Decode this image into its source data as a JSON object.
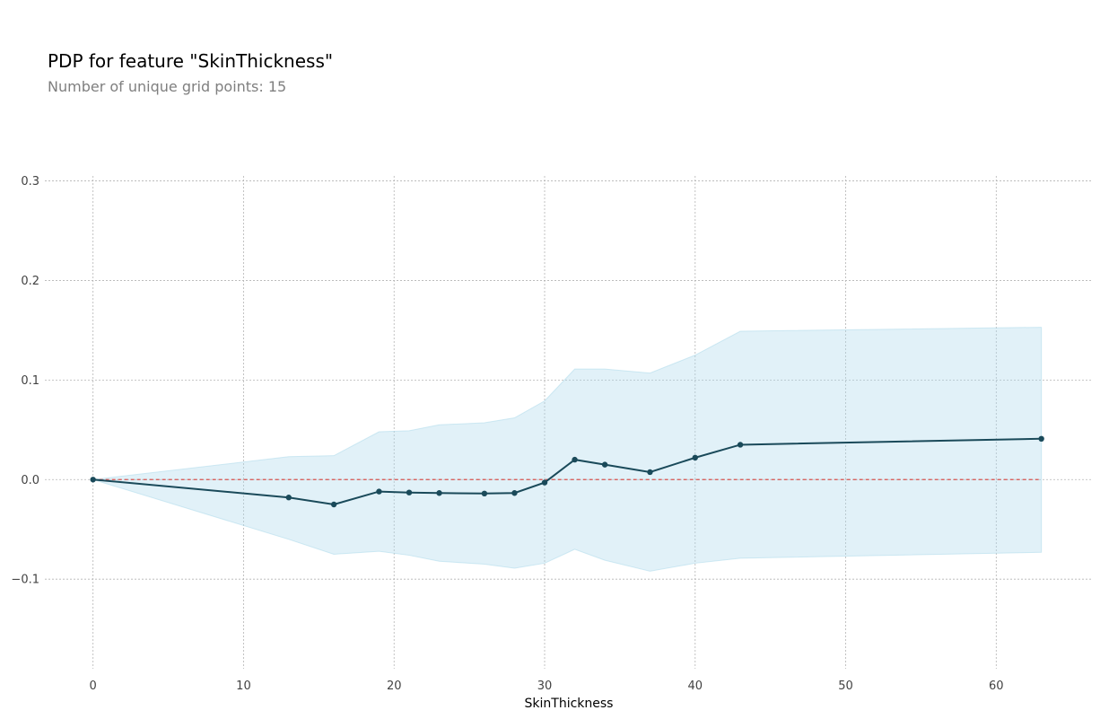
{
  "chart_data": {
    "type": "line",
    "title": "PDP for feature \"SkinThickness\"",
    "subtitle": "Number of unique grid points: 15",
    "xlabel": "SkinThickness",
    "ylabel": "",
    "xlim": [
      -3.2,
      66.3
    ],
    "ylim": [
      -0.19,
      0.305
    ],
    "xticks": [
      0,
      10,
      20,
      30,
      40,
      50,
      60
    ],
    "xtick_labels": [
      "0",
      "10",
      "20",
      "30",
      "40",
      "50",
      "60"
    ],
    "yticks": [
      -0.1,
      0.0,
      0.1,
      0.2,
      0.3
    ],
    "ytick_labels": [
      "−0.1",
      "0.0",
      "0.1",
      "0.2",
      "0.3"
    ],
    "grid": true,
    "reference_line": {
      "y": 0,
      "color": "#d9534f",
      "style": "dashed"
    },
    "series": [
      {
        "line_color": "#1a4a5a",
        "band_color": "#a8d8ea",
        "x": [
          0,
          13,
          16,
          19,
          21,
          23,
          26,
          28,
          30,
          32,
          34,
          37,
          40,
          43,
          63
        ],
        "y": [
          0.0,
          -0.018,
          -0.025,
          -0.012,
          -0.013,
          -0.0135,
          -0.014,
          -0.0135,
          -0.003,
          0.02,
          0.015,
          0.0075,
          0.022,
          0.035,
          0.041
        ],
        "upper": [
          0.0,
          0.023,
          0.024,
          0.048,
          0.049,
          0.055,
          0.057,
          0.062,
          0.079,
          0.111,
          0.111,
          0.107,
          0.125,
          0.149,
          0.153
        ],
        "lower": [
          0.0,
          -0.06,
          -0.075,
          -0.072,
          -0.076,
          -0.082,
          -0.085,
          -0.089,
          -0.084,
          -0.07,
          -0.081,
          -0.092,
          -0.084,
          -0.079,
          -0.073
        ]
      }
    ]
  }
}
